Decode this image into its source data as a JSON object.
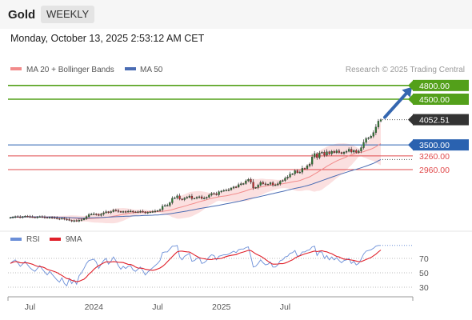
{
  "header": {
    "title": "Gold",
    "timeframe": "WEEKLY",
    "datetime": "Monday, October 13, 2025 2:53:12 AM CET"
  },
  "legend": {
    "ma20": "MA 20 + Bollinger Bands",
    "ma50": "MA 50",
    "copyright": "Research © 2025 Trading Central"
  },
  "rsi_legend": {
    "rsi": "RSI",
    "ma": "9MA"
  },
  "colors": {
    "resistance": "#53a01a",
    "pivot": "#2a62b0",
    "support": "#e0494b",
    "ma20": "#f28b8b",
    "ma50": "#4a6cb3",
    "bollinger": "#fbe0e0",
    "candle_up": "#2e7d32",
    "candle_down": "#c62828",
    "last_price": "#333333",
    "rsi": "#6b8fd8",
    "rsi_ma": "#e0202a",
    "arrow": "#3567b0"
  },
  "chart_data": [
    {
      "type": "candlestick",
      "x_ticks": [
        "Jul",
        "2024",
        "Jul",
        "2025",
        "Jul"
      ],
      "ylim": [
        1500,
        5200
      ],
      "last_price": 4052.51,
      "levels": [
        {
          "label": "4800.00",
          "value": 4800,
          "kind": "resistance"
        },
        {
          "label": "4500.00",
          "value": 4500,
          "kind": "resistance"
        },
        {
          "label": "3500.00",
          "value": 3500,
          "kind": "pivot"
        },
        {
          "label": "3260.00",
          "value": 3260,
          "kind": "support"
        },
        {
          "label": "2960.00",
          "value": 2960,
          "kind": "support"
        }
      ],
      "last_price_label": "4052.51",
      "forecast_target": 4800,
      "series_close": [
        1912,
        1923,
        1931,
        1925,
        1918,
        1930,
        1942,
        1935,
        1927,
        1920,
        1916,
        1924,
        1930,
        1921,
        1913,
        1905,
        1915,
        1908,
        1900,
        1890,
        1882,
        1893,
        1875,
        1868,
        1850,
        1833,
        1846,
        1832,
        1855,
        1864,
        1888,
        1931,
        1975,
        1984,
        1992,
        1981,
        1958,
        1984,
        2015,
        2036,
        2020,
        2041,
        2073,
        2061,
        2045,
        2029,
        2043,
        2035,
        2048,
        2051,
        2034,
        2028,
        2039,
        2047,
        2034,
        2015,
        2026,
        2033,
        2042,
        2052,
        2063,
        2085,
        2160,
        2175,
        2179,
        2236,
        2333,
        2345,
        2385,
        2318,
        2305,
        2335,
        2355,
        2380,
        2327,
        2332,
        2355,
        2366,
        2328,
        2336,
        2355,
        2402,
        2437,
        2433,
        2410,
        2476,
        2490,
        2505,
        2512,
        2519,
        2556,
        2582,
        2580,
        2630,
        2650,
        2655,
        2714,
        2745,
        2684,
        2561,
        2570,
        2620,
        2680,
        2650,
        2634,
        2640,
        2672,
        2624,
        2625,
        2650,
        2705,
        2722,
        2772,
        2800,
        2862,
        2870,
        2936,
        2894,
        2905,
        2988,
        2984,
        3044,
        3080,
        3235,
        3310,
        3222,
        3325,
        3340,
        3275,
        3350,
        3305,
        3360,
        3330,
        3370,
        3335,
        3310,
        3340,
        3360,
        3405,
        3345,
        3380,
        3335,
        3365,
        3440,
        3555,
        3640,
        3655,
        3690,
        3770,
        3890,
        4020,
        4052
      ]
    },
    {
      "type": "line",
      "title": "RSI",
      "y_ticks": [
        70,
        50,
        30
      ],
      "ylim": [
        20,
        100
      ],
      "rsi_series": [
        63,
        66,
        68,
        64,
        59,
        62,
        66,
        61,
        57,
        54,
        52,
        56,
        60,
        55,
        51,
        47,
        52,
        48,
        44,
        40,
        37,
        43,
        35,
        32,
        42,
        35,
        40,
        34,
        46,
        50,
        56,
        63,
        67,
        68,
        69,
        65,
        56,
        62,
        67,
        70,
        62,
        66,
        72,
        67,
        60,
        55,
        59,
        56,
        59,
        60,
        54,
        52,
        55,
        58,
        53,
        47,
        51,
        54,
        57,
        60,
        63,
        67,
        78,
        79,
        79,
        83,
        87,
        87,
        88,
        72,
        68,
        73,
        75,
        77,
        66,
        67,
        70,
        71,
        63,
        64,
        67,
        72,
        75,
        74,
        68,
        73,
        74,
        75,
        75,
        76,
        78,
        80,
        78,
        82,
        83,
        83,
        85,
        86,
        73,
        58,
        59,
        63,
        68,
        64,
        61,
        62,
        65,
        58,
        58,
        61,
        67,
        68,
        72,
        73,
        77,
        78,
        81,
        73,
        74,
        79,
        79,
        81,
        82,
        86,
        87,
        74,
        79,
        79,
        70,
        74,
        68,
        72,
        68,
        71,
        67,
        64,
        67,
        68,
        70,
        63,
        66,
        61,
        63,
        69,
        76,
        80,
        81,
        82,
        84,
        87,
        88,
        88
      ]
    }
  ]
}
